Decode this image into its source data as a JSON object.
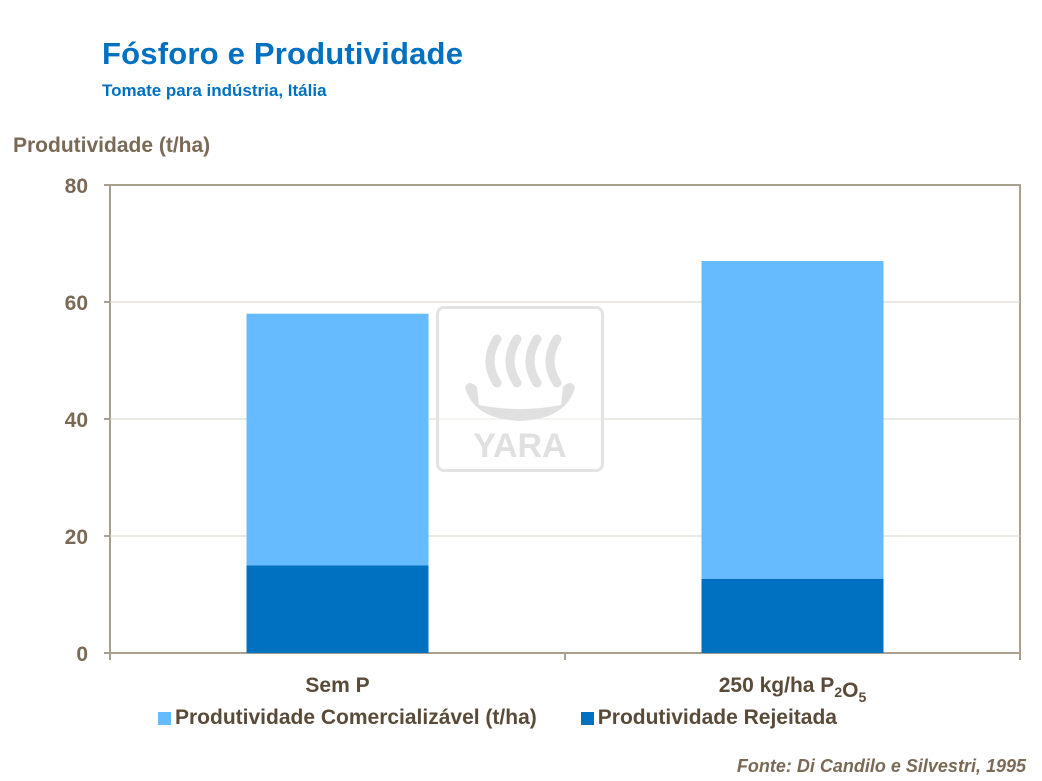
{
  "title": "Fósforo e Produtividade",
  "subtitle": "Tomate para indústria, Itália",
  "source": "Fonte: Di Candilo e Silvestri, 1995",
  "logo_text": "YARA",
  "colors": {
    "title": "#0070c0",
    "comercializavel": "#66bbff",
    "rejeitada": "#0070c0",
    "text": "#7a6a55",
    "axis": "#a89f8c"
  },
  "chart_data": {
    "type": "bar",
    "stacked": true,
    "title": "",
    "ylabel": "Produtividade (t/ha)",
    "xlabel": "",
    "ylim": [
      0,
      80
    ],
    "yticks": [
      0,
      20,
      40,
      60,
      80
    ],
    "grid": true,
    "legend_position": "bottom",
    "categories": [
      {
        "text": "Sem P",
        "sub": ""
      },
      {
        "text": "250 kg/ha  P",
        "sub": "2",
        "text2": "O",
        "sub2": "5"
      }
    ],
    "series": [
      {
        "name": "Produtividade Rejeitada",
        "color": "#0070c0",
        "values": [
          15,
          12.7
        ]
      },
      {
        "name": "Produtividade Comercializável (t/ha)",
        "color": "#66bbff",
        "values": [
          43,
          54.3
        ]
      }
    ]
  }
}
